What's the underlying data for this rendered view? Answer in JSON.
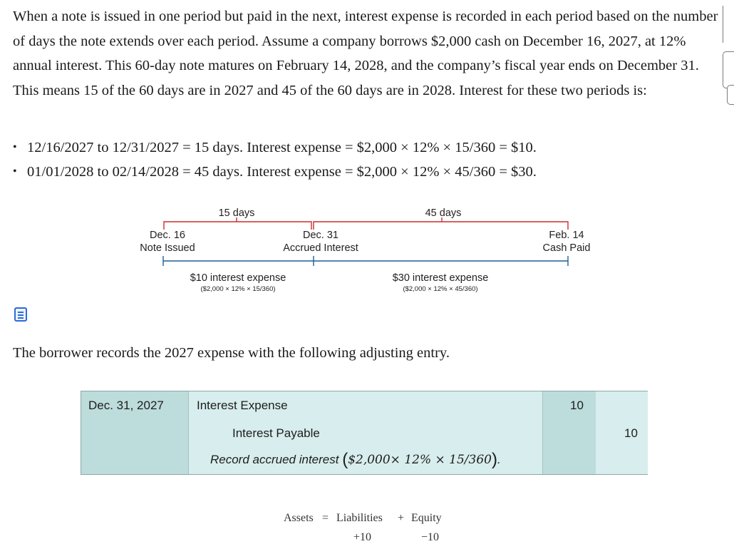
{
  "intro_paragraph": "When a note is issued in one period but paid in the next, interest expense is recorded in each period based on the number of days the note extends over each period. Assume a company borrows $2,000 cash on December 16, 2027, at 12% annual interest. This 60-day note matures on February 14, 2028, and the company’s fiscal year ends on December 31. This means 15 of the 60 days are in 2027 and 45 of the 60 days are in 2028. Interest for these two periods is:",
  "bullets": [
    "12/16/2027 to 12/31/2027 = 15 days. Interest expense = $2,000 × 12% × 15/360 = $10.",
    "01/01/2028 to 02/14/2028 = 45 days. Interest expense = $2,000 × 12% × 45/360 = $30."
  ],
  "timeline": {
    "span1": "15 days",
    "span2": "45 days",
    "point1": {
      "date": "Dec. 16",
      "label": "Note Issued"
    },
    "point2": {
      "date": "Dec. 31",
      "label": "Accrued Interest"
    },
    "point3": {
      "date": "Feb. 14",
      "label": "Cash Paid"
    },
    "expense1": {
      "text": "$10 interest expense",
      "calc": "($2,000 × 12% × 15/360)"
    },
    "expense2": {
      "text": "$30 interest expense",
      "calc": "($2,000 × 12% × 45/360)"
    },
    "colors": {
      "bracket": "#cc2d2d",
      "line": "#1f5f99"
    }
  },
  "entry_intro": "The borrower records the 2027 expense with the following adjusting entry.",
  "journal": {
    "date": "Dec. 31, 2027",
    "debit_account": "Interest Expense",
    "credit_account": "Interest Payable",
    "memo_text": "Record accrued interest ",
    "memo_formula": "$2,000× 12% × 15/360",
    "memo_end": ".",
    "debit_amount": "10",
    "credit_amount": "10",
    "colors": {
      "dark": "#bddcdc",
      "light": "#d8eded"
    }
  },
  "equation": {
    "assets": "Assets",
    "equals": "=",
    "liabilities": "Liabilities",
    "plus": "+",
    "equity": "Equity",
    "liabilities_change": "+10",
    "equity_change": "−10"
  },
  "icons": {
    "notes": "notes-icon"
  }
}
